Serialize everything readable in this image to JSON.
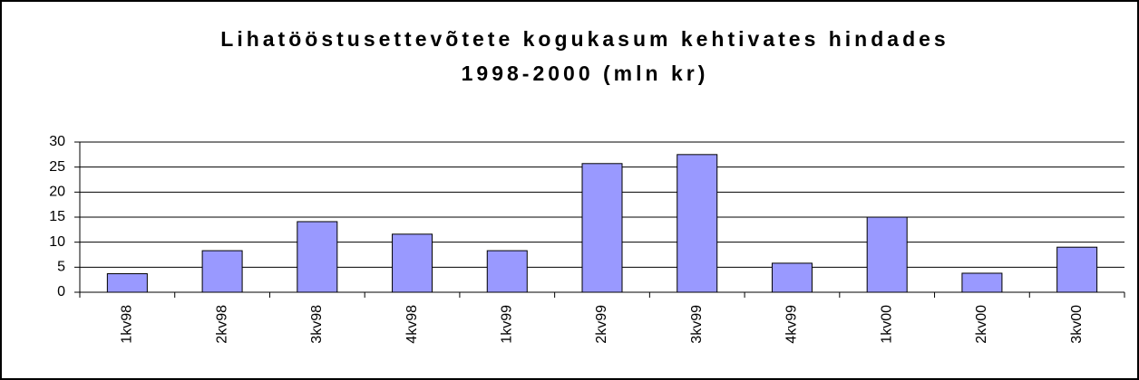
{
  "chart_data": {
    "type": "bar",
    "title": [
      "Lihatööstusettevõtete kogukasum kehtivates hindades",
      "1998-2000 (mln kr)"
    ],
    "categories": [
      "1kv98",
      "2kv98",
      "3kv98",
      "4kv98",
      "1kv99",
      "2kv99",
      "3kv99",
      "4kv99",
      "1kv00",
      "2kv00",
      "3kv00"
    ],
    "values": [
      3.7,
      8.3,
      14.1,
      11.6,
      8.3,
      25.7,
      27.5,
      5.8,
      15.0,
      3.8,
      9.0
    ],
    "color": "#9999ff",
    "ylim": [
      0,
      30
    ],
    "yticks": [
      0,
      5,
      10,
      15,
      20,
      25,
      30
    ],
    "grid": true
  }
}
